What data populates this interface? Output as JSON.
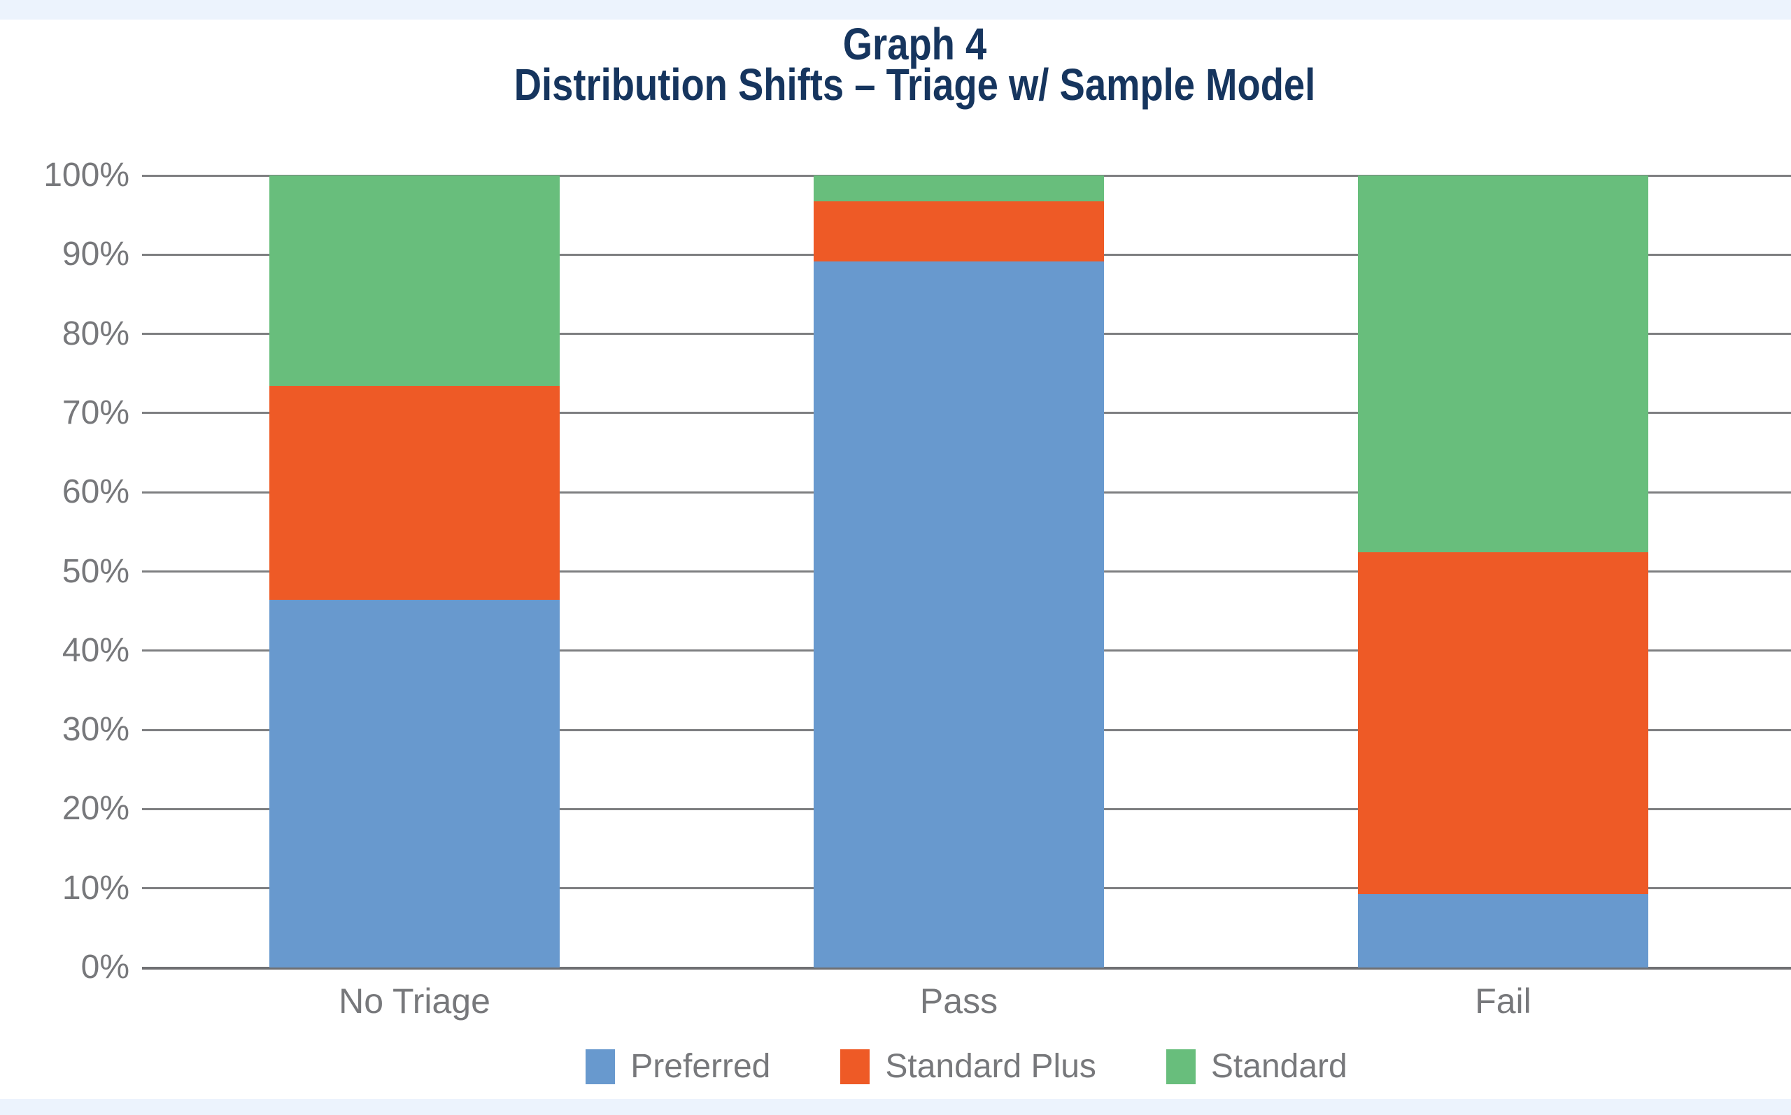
{
  "header": {
    "title_line1": "Graph 4",
    "title_line2": "Distribution Shifts – Triage w/ Sample Model"
  },
  "colors": {
    "title_text": "#16355E",
    "axis_text": "#77787B",
    "gridline": "#7E7F81",
    "top_band": "#ECF3FD",
    "bottom_band": "#ECF3FD",
    "preferred_blue": "#6899CE",
    "standard_plus_orange": "#EE5A26",
    "standard_green": "#68BE7C",
    "background": "#FFFFFF"
  },
  "chart_data": {
    "type": "bar",
    "subtype": "stacked-100-percent",
    "title": "Graph 4",
    "subtitle": "Distribution Shifts – Triage w/ Sample Model",
    "categories": [
      "No Triage",
      "Pass",
      "Fail"
    ],
    "series": [
      {
        "name": "Preferred",
        "color": "#6899CE",
        "values": [
          46.4,
          89.1,
          9.3
        ]
      },
      {
        "name": "Standard Plus",
        "color": "#EE5A26",
        "values": [
          27.0,
          7.6,
          43.1
        ]
      },
      {
        "name": "Standard",
        "color": "#68BE7C",
        "values": [
          26.6,
          3.3,
          47.6
        ]
      }
    ],
    "stack_order_bottom_to_top": [
      "Preferred",
      "Standard Plus",
      "Standard"
    ],
    "y_axis": {
      "min": 0,
      "max": 100,
      "tick_step": 10,
      "tick_labels": [
        "0%",
        "10%",
        "20%",
        "30%",
        "40%",
        "50%",
        "60%",
        "70%",
        "80%",
        "90%",
        "100%"
      ],
      "format": "percent"
    },
    "x_axis_labels": [
      "No Triage",
      "Pass",
      "Fail"
    ],
    "grid": true,
    "legend_position": "bottom",
    "legend_entries": [
      "Preferred",
      "Standard Plus",
      "Standard"
    ]
  }
}
